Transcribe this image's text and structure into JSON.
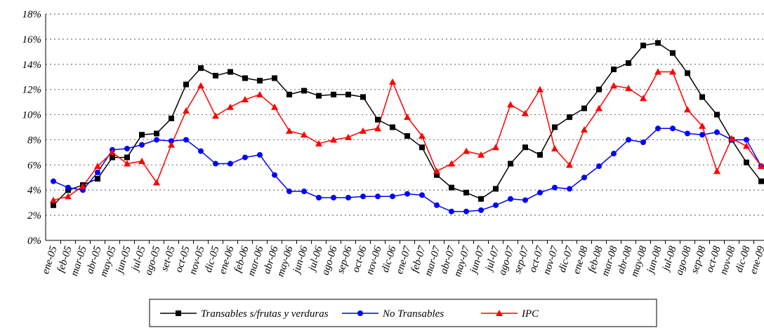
{
  "chart_data": {
    "type": "line",
    "categories": [
      "ene-05",
      "feb-05",
      "mar-05",
      "abr-05",
      "may-05",
      "jun-05",
      "jul-05",
      "ago-05",
      "set-05",
      "oct-05",
      "nov-05",
      "dic-05",
      "ene-06",
      "feb-06",
      "mar-06",
      "abr-06",
      "may-06",
      "jun-06",
      "jul-06",
      "ago-06",
      "sep-06",
      "oct-06",
      "nov-06",
      "dic-06",
      "ene-07",
      "feb-07",
      "mar-07",
      "abr-07",
      "may-07",
      "jun-07",
      "jul-07",
      "ago-07",
      "sep-07",
      "oct-07",
      "nov-07",
      "dic-07",
      "ene-08",
      "feb-08",
      "mar-08",
      "abr-08",
      "may-08",
      "jun-08",
      "jul-08",
      "ago-08",
      "sep-08",
      "oct-08",
      "nov-08",
      "dic-08",
      "ene-09"
    ],
    "series": [
      {
        "name": "Transables s/frutas y verduras",
        "color": "#000000",
        "marker": "square",
        "values": [
          2.8,
          4.0,
          4.4,
          4.9,
          6.6,
          6.6,
          8.4,
          8.5,
          9.7,
          12.4,
          13.7,
          13.1,
          13.4,
          12.9,
          12.7,
          12.9,
          11.6,
          11.9,
          11.5,
          11.6,
          11.6,
          11.4,
          9.6,
          9.0,
          8.3,
          7.4,
          5.2,
          4.2,
          3.8,
          3.3,
          4.1,
          6.1,
          7.4,
          6.8,
          9.0,
          9.8,
          10.5,
          12.0,
          13.6,
          14.1,
          15.5,
          15.7,
          14.9,
          13.3,
          11.4,
          10.0,
          8.0,
          6.2,
          4.7
        ]
      },
      {
        "name": "No Transables",
        "color": "#0000ff",
        "marker": "circle",
        "values": [
          4.7,
          4.2,
          4.0,
          5.4,
          7.2,
          7.3,
          7.6,
          8.0,
          7.9,
          8.0,
          7.1,
          6.1,
          6.1,
          6.6,
          6.8,
          5.2,
          3.9,
          3.9,
          3.4,
          3.4,
          3.4,
          3.5,
          3.5,
          3.5,
          3.7,
          3.6,
          2.8,
          2.3,
          2.3,
          2.4,
          2.8,
          3.3,
          3.2,
          3.8,
          4.2,
          4.1,
          5.0,
          5.9,
          6.9,
          8.0,
          7.8,
          8.9,
          8.9,
          8.5,
          8.4,
          8.6,
          8.0,
          8.0,
          5.9
        ]
      },
      {
        "name": "IPC",
        "color": "#ff0000",
        "marker": "triangle",
        "values": [
          3.2,
          3.5,
          4.3,
          5.9,
          7.0,
          6.1,
          6.3,
          4.6,
          7.6,
          10.3,
          12.3,
          9.9,
          10.6,
          11.2,
          11.6,
          10.6,
          8.7,
          8.4,
          7.7,
          8.0,
          8.2,
          8.7,
          8.9,
          12.6,
          9.8,
          8.3,
          5.5,
          6.1,
          7.1,
          6.8,
          7.4,
          10.8,
          10.1,
          12.0,
          7.3,
          6.0,
          8.8,
          10.5,
          12.3,
          12.1,
          11.3,
          13.4,
          13.4,
          10.4,
          9.1,
          5.5,
          8.1,
          7.5,
          5.9
        ]
      }
    ],
    "ylim": [
      0,
      18
    ],
    "yticks": [
      {
        "value": 0,
        "label": "0%"
      },
      {
        "value": 2,
        "label": "2%"
      },
      {
        "value": 4,
        "label": "4%"
      },
      {
        "value": 6,
        "label": "6%"
      },
      {
        "value": 8,
        "label": "8%"
      },
      {
        "value": 10,
        "label": "10%"
      },
      {
        "value": 12,
        "label": "12%"
      },
      {
        "value": 14,
        "label": "14%"
      },
      {
        "value": 16,
        "label": "16%"
      },
      {
        "value": 18,
        "label": "18%"
      }
    ],
    "grid": true,
    "legend": "bottom"
  }
}
